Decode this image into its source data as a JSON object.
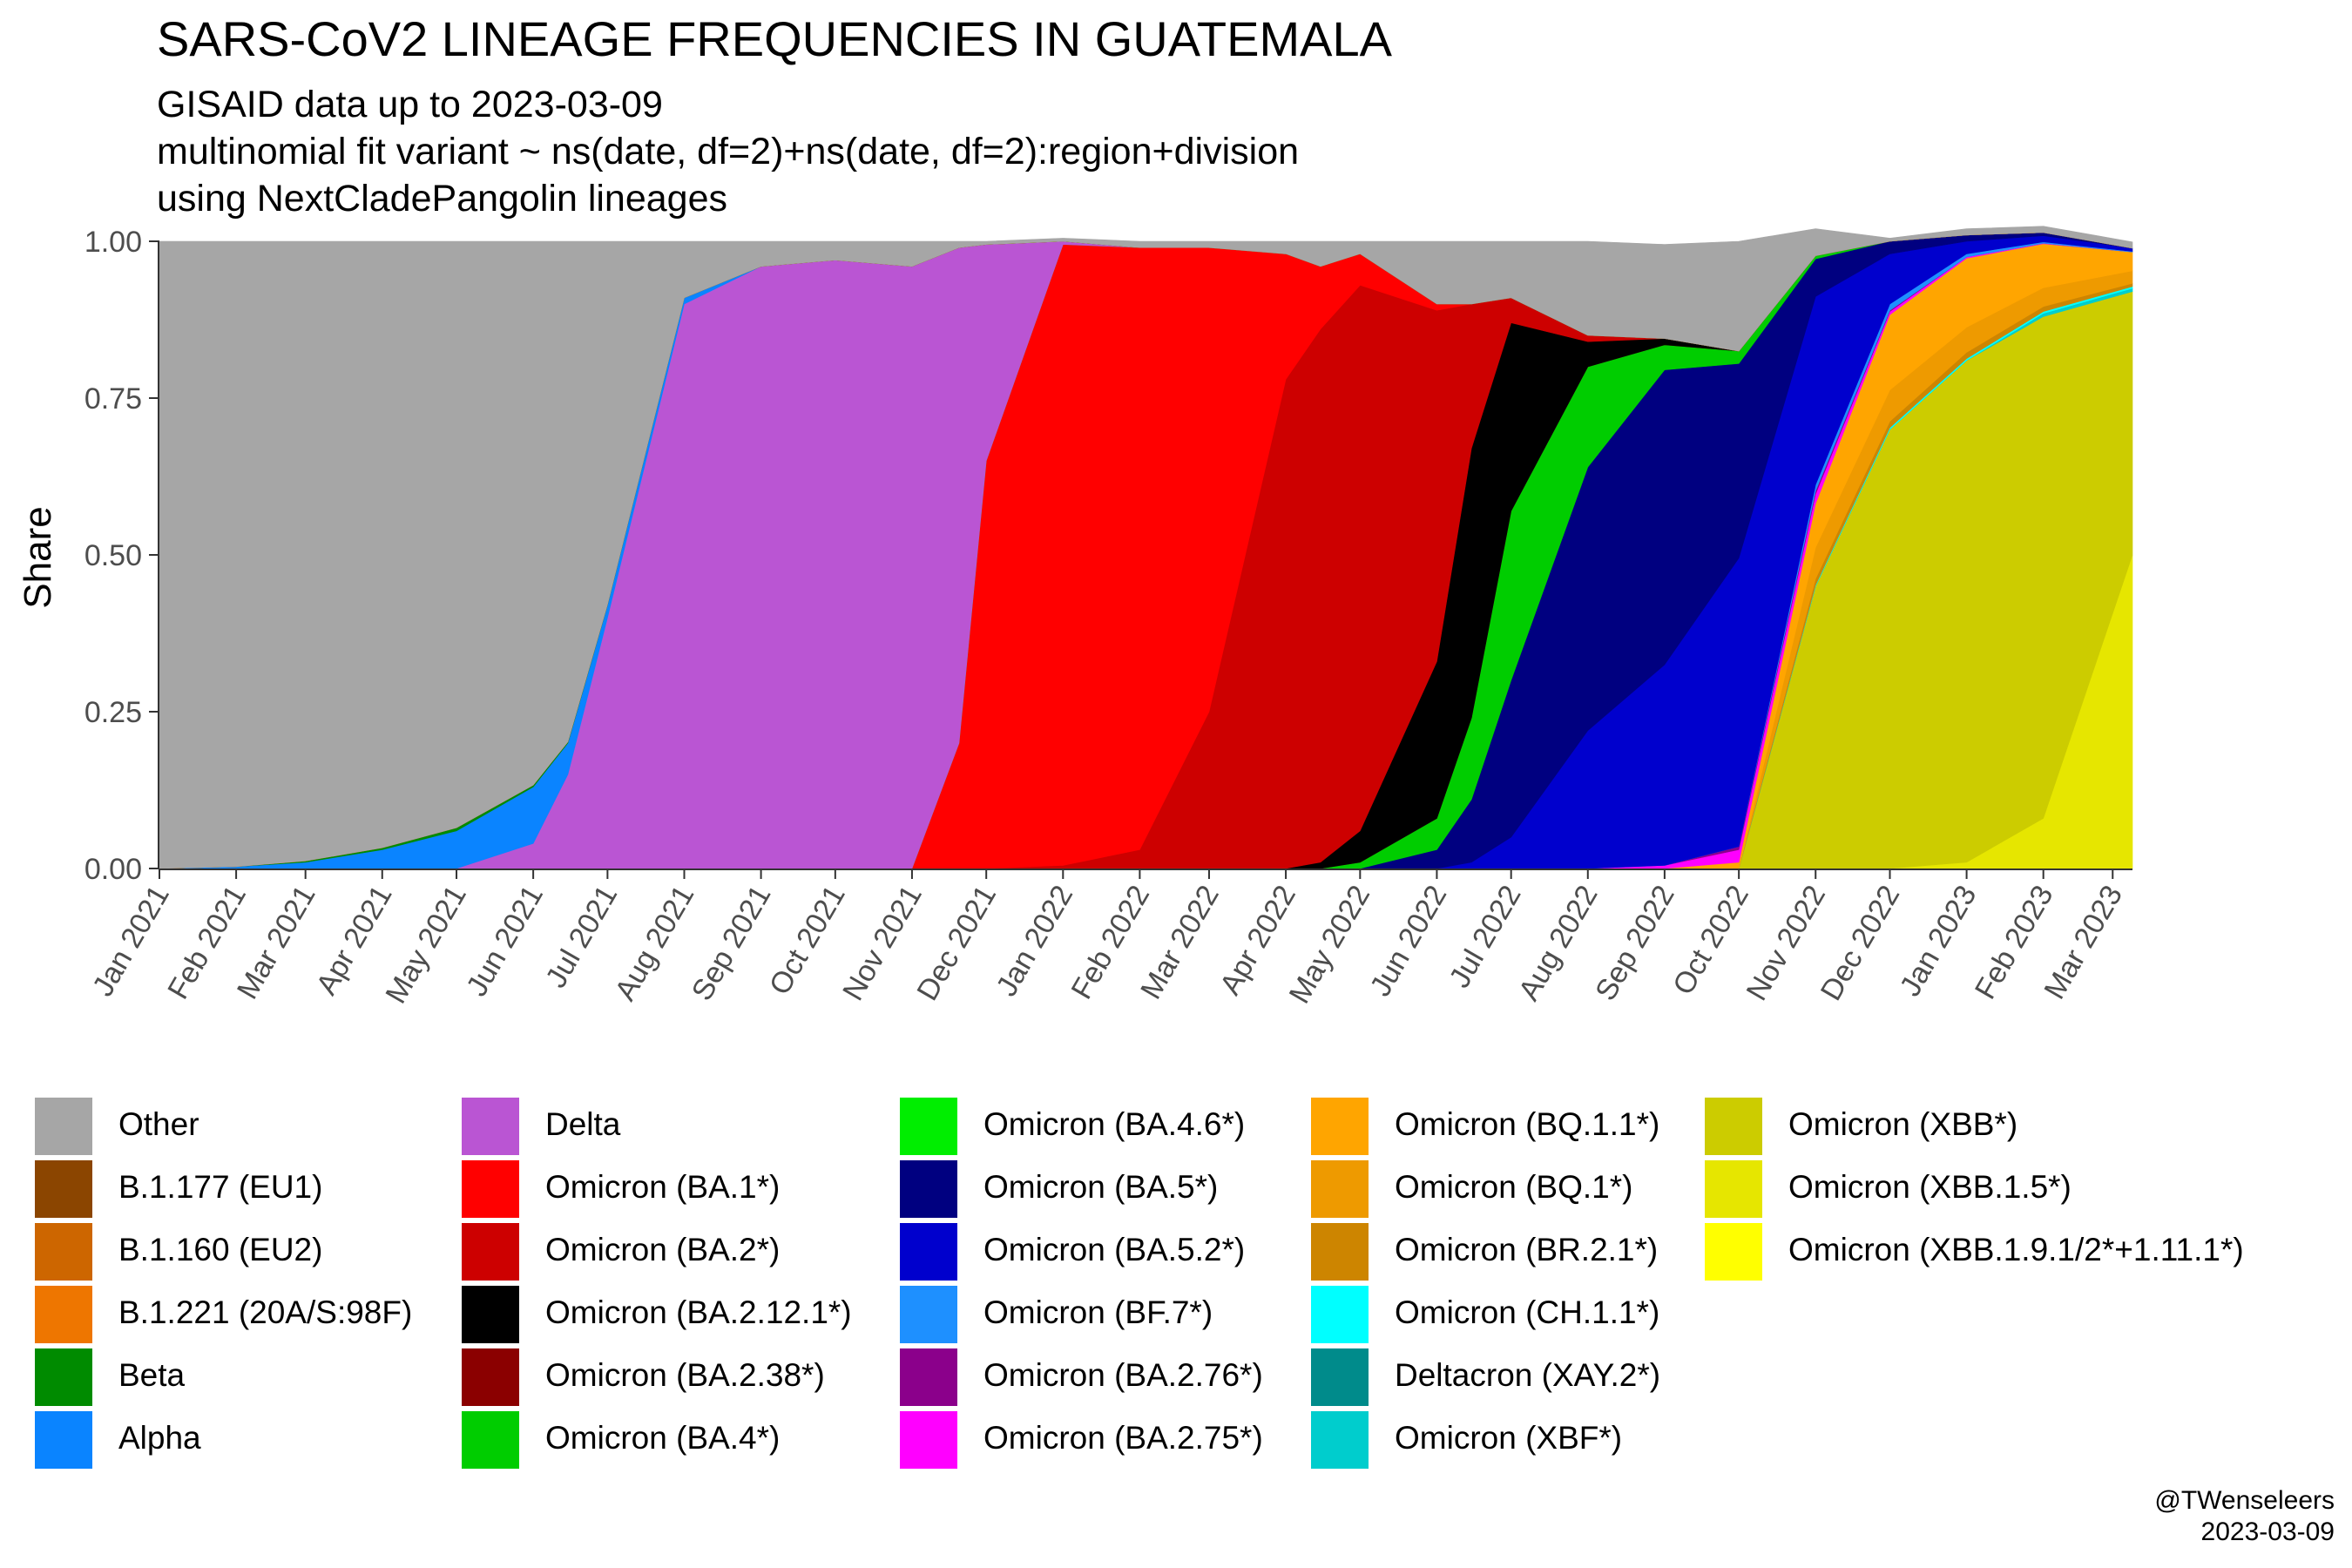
{
  "title": "SARS-CoV2 LINEAGE FREQUENCIES IN GUATEMALA",
  "subtitle_lines": [
    "GISAID data up to 2023-03-09",
    "multinomial fit variant ~ ns(date, df=2)+ns(date, df=2):region+division",
    "using NextCladePangolin lineages"
  ],
  "credit": {
    "handle": "@TWenseleers",
    "date": "2023-03-09"
  },
  "chart_data": {
    "type": "area",
    "stacked": "fill",
    "ylabel": "Share",
    "ylim": [
      0,
      1
    ],
    "xlim": [
      "2021-01-01",
      "2023-03-09"
    ],
    "y_ticks": [
      "0.00",
      "0.25",
      "0.50",
      "0.75",
      "1.00"
    ],
    "x_ticks": [
      "Jan 2021",
      "Feb 2021",
      "Mar 2021",
      "Apr 2021",
      "May 2021",
      "Jun 2021",
      "Jul 2021",
      "Aug 2021",
      "Sep 2021",
      "Oct 2021",
      "Nov 2021",
      "Dec 2021",
      "Jan 2022",
      "Feb 2022",
      "Mar 2022",
      "Apr 2022",
      "May 2022",
      "Jun 2022",
      "Jul 2022",
      "Aug 2022",
      "Sep 2022",
      "Oct 2022",
      "Nov 2022",
      "Dec 2022",
      "Jan 2023",
      "Feb 2023",
      "Mar 2023"
    ],
    "x": [
      "2021-01-01",
      "2021-02-01",
      "2021-03-01",
      "2021-04-01",
      "2021-05-01",
      "2021-06-01",
      "2021-06-15",
      "2021-07-01",
      "2021-08-01",
      "2021-09-01",
      "2021-10-01",
      "2021-11-01",
      "2021-11-20",
      "2021-12-01",
      "2022-01-01",
      "2022-02-01",
      "2022-03-01",
      "2022-04-01",
      "2022-04-15",
      "2022-05-01",
      "2022-06-01",
      "2022-06-15",
      "2022-07-01",
      "2022-08-01",
      "2022-09-01",
      "2022-10-01",
      "2022-11-01",
      "2022-12-01",
      "2023-01-01",
      "2023-02-01",
      "2023-03-09"
    ],
    "series": [
      {
        "name": "Omicron (XBB.1.9.1/2*+1.11.1*)",
        "color": "#ffff00",
        "values": [
          0,
          0,
          0,
          0,
          0,
          0,
          0,
          0,
          0,
          0,
          0,
          0,
          0,
          0,
          0,
          0,
          0,
          0,
          0,
          0,
          0,
          0,
          0,
          0,
          0,
          0,
          0,
          0,
          0,
          0,
          0
        ]
      },
      {
        "name": "Omicron (XBB.1.5*)",
        "color": "#e6e600",
        "values": [
          0,
          0,
          0,
          0,
          0,
          0,
          0,
          0,
          0,
          0,
          0,
          0,
          0,
          0,
          0,
          0,
          0,
          0,
          0,
          0,
          0,
          0,
          0,
          0,
          0,
          0,
          0,
          0,
          0.01,
          0.08,
          0.5
        ]
      },
      {
        "name": "Omicron (XBB*)",
        "color": "#cccc00",
        "values": [
          0,
          0,
          0,
          0,
          0,
          0,
          0,
          0,
          0,
          0,
          0,
          0,
          0,
          0,
          0,
          0,
          0,
          0,
          0,
          0,
          0,
          0,
          0,
          0,
          0,
          0,
          0.45,
          0.7,
          0.8,
          0.8,
          0.42
        ]
      },
      {
        "name": "Omicron (XBF*)",
        "color": "#00cdcd",
        "values": [
          0,
          0,
          0,
          0,
          0,
          0,
          0,
          0,
          0,
          0,
          0,
          0,
          0,
          0,
          0,
          0,
          0,
          0,
          0,
          0,
          0,
          0,
          0,
          0,
          0,
          0,
          0,
          0,
          0,
          0.005,
          0.005
        ]
      },
      {
        "name": "Deltacron (XAY.2*)",
        "color": "#008b8b",
        "values": [
          0,
          0,
          0,
          0,
          0,
          0,
          0,
          0,
          0,
          0,
          0,
          0,
          0,
          0,
          0,
          0,
          0,
          0,
          0,
          0,
          0,
          0,
          0,
          0,
          0,
          0,
          0,
          0,
          0,
          0,
          0
        ]
      },
      {
        "name": "Omicron (CH.1.1*)",
        "color": "#00ffff",
        "values": [
          0,
          0,
          0,
          0,
          0,
          0,
          0,
          0,
          0,
          0,
          0,
          0,
          0,
          0,
          0,
          0,
          0,
          0,
          0,
          0,
          0,
          0,
          0,
          0,
          0,
          0,
          0.002,
          0.003,
          0.003,
          0.003,
          0.003
        ]
      },
      {
        "name": "Omicron (BR.2.1*)",
        "color": "#cd8500",
        "values": [
          0,
          0,
          0,
          0,
          0,
          0,
          0,
          0,
          0,
          0,
          0,
          0,
          0,
          0,
          0,
          0,
          0,
          0,
          0,
          0,
          0,
          0,
          0,
          0,
          0,
          0,
          0.01,
          0.01,
          0.01,
          0.008,
          0.005
        ]
      },
      {
        "name": "Omicron (BQ.1*)",
        "color": "#ee9a00",
        "values": [
          0,
          0,
          0,
          0,
          0,
          0,
          0,
          0,
          0,
          0,
          0,
          0,
          0,
          0,
          0,
          0,
          0,
          0,
          0,
          0,
          0,
          0,
          0,
          0,
          0,
          0,
          0.05,
          0.05,
          0.04,
          0.03,
          0.02
        ]
      },
      {
        "name": "Omicron (BQ.1.1*)",
        "color": "#ffa500",
        "values": [
          0,
          0,
          0,
          0,
          0,
          0,
          0,
          0,
          0,
          0,
          0,
          0,
          0,
          0,
          0,
          0,
          0,
          0,
          0,
          0,
          0,
          0,
          0,
          0,
          0,
          0.01,
          0.07,
          0.12,
          0.11,
          0.07,
          0.03
        ]
      },
      {
        "name": "Omicron (BA.2.75*)",
        "color": "#ff00ff",
        "values": [
          0,
          0,
          0,
          0,
          0,
          0,
          0,
          0,
          0,
          0,
          0,
          0,
          0,
          0,
          0,
          0,
          0,
          0,
          0,
          0,
          0,
          0,
          0,
          0,
          0.005,
          0.02,
          0.015,
          0.005,
          0.002,
          0.001,
          0
        ]
      },
      {
        "name": "Omicron (BA.2.76*)",
        "color": "#8b008b",
        "values": [
          0,
          0,
          0,
          0,
          0,
          0,
          0,
          0,
          0,
          0,
          0,
          0,
          0,
          0,
          0,
          0,
          0,
          0,
          0,
          0,
          0,
          0,
          0,
          0,
          0,
          0.005,
          0.005,
          0.002,
          0,
          0,
          0
        ]
      },
      {
        "name": "Omicron (BF.7*)",
        "color": "#1e90ff",
        "values": [
          0,
          0,
          0,
          0,
          0,
          0,
          0,
          0,
          0,
          0,
          0,
          0,
          0,
          0,
          0,
          0,
          0,
          0,
          0,
          0,
          0,
          0,
          0,
          0,
          0,
          0,
          0.01,
          0.01,
          0.005,
          0.002,
          0.001
        ]
      },
      {
        "name": "Omicron (BA.5.2*)",
        "color": "#0000cd",
        "values": [
          0,
          0,
          0,
          0,
          0,
          0,
          0,
          0,
          0,
          0,
          0,
          0,
          0,
          0,
          0,
          0,
          0,
          0,
          0,
          0,
          0,
          0.01,
          0.05,
          0.22,
          0.32,
          0.46,
          0.3,
          0.08,
          0.02,
          0.01,
          0.005
        ]
      },
      {
        "name": "Omicron (BA.5*)",
        "color": "#000080",
        "values": [
          0,
          0,
          0,
          0,
          0,
          0,
          0,
          0,
          0,
          0,
          0,
          0,
          0,
          0,
          0,
          0,
          0,
          0,
          0,
          0,
          0.03,
          0.1,
          0.25,
          0.42,
          0.47,
          0.31,
          0.06,
          0.02,
          0.01,
          0.005,
          0
        ]
      },
      {
        "name": "Omicron (BA.4*)",
        "color": "#00cd00",
        "values": [
          0,
          0,
          0,
          0,
          0,
          0,
          0,
          0,
          0,
          0,
          0,
          0,
          0,
          0,
          0,
          0,
          0,
          0,
          0,
          0.01,
          0.05,
          0.13,
          0.27,
          0.16,
          0.04,
          0.02,
          0.005,
          0,
          0,
          0,
          0
        ]
      },
      {
        "name": "Omicron (BA.2.38*)",
        "color": "#8b0000",
        "values": [
          0,
          0,
          0,
          0,
          0,
          0,
          0,
          0,
          0,
          0,
          0,
          0,
          0,
          0,
          0,
          0,
          0,
          0,
          0,
          0,
          0,
          0,
          0,
          0,
          0,
          0,
          0,
          0,
          0,
          0,
          0
        ]
      },
      {
        "name": "Omicron (BA.2.12.1*)",
        "color": "#000000",
        "values": [
          0,
          0,
          0,
          0,
          0,
          0,
          0,
          0,
          0,
          0,
          0,
          0,
          0,
          0,
          0,
          0,
          0,
          0,
          0.01,
          0.05,
          0.25,
          0.43,
          0.3,
          0.04,
          0.01,
          0,
          0,
          0,
          0,
          0,
          0
        ]
      },
      {
        "name": "Omicron (BA.2*)",
        "color": "#cd0000",
        "values": [
          0,
          0,
          0,
          0,
          0,
          0,
          0,
          0,
          0,
          0,
          0,
          0,
          0,
          0,
          0.005,
          0.03,
          0.25,
          0.78,
          0.85,
          0.87,
          0.56,
          0.23,
          0.04,
          0.01,
          0,
          0,
          0,
          0,
          0,
          0,
          0
        ]
      },
      {
        "name": "Omicron (BA.1*)",
        "color": "#ff0000",
        "values": [
          0,
          0,
          0,
          0,
          0,
          0,
          0,
          0,
          0,
          0,
          0,
          0,
          0.2,
          0.65,
          0.99,
          0.96,
          0.74,
          0.2,
          0.1,
          0.05,
          0.01,
          0,
          0,
          0,
          0,
          0,
          0,
          0,
          0,
          0,
          0
        ]
      },
      {
        "name": "Omicron (BA.4.6*)",
        "color": "#00ee00",
        "values": [
          0,
          0,
          0,
          0,
          0,
          0,
          0,
          0,
          0,
          0,
          0,
          0,
          0,
          0,
          0,
          0,
          0,
          0,
          0,
          0,
          0,
          0,
          0,
          0,
          0,
          0,
          0,
          0,
          0,
          0,
          0
        ]
      },
      {
        "name": "Delta",
        "color": "#ba55d3",
        "values": [
          0,
          0,
          0,
          0,
          0,
          0.04,
          0.15,
          0.4,
          0.9,
          0.96,
          0.97,
          0.96,
          0.79,
          0.345,
          0.005,
          0,
          0,
          0,
          0,
          0,
          0,
          0,
          0,
          0,
          0,
          0,
          0,
          0,
          0,
          0,
          0
        ]
      },
      {
        "name": "Alpha",
        "color": "#0a84ff",
        "values": [
          0,
          0.003,
          0.01,
          0.03,
          0.06,
          0.09,
          0.05,
          0.02,
          0.01,
          0,
          0,
          0,
          0,
          0,
          0,
          0,
          0,
          0,
          0,
          0,
          0,
          0,
          0,
          0,
          0,
          0,
          0,
          0,
          0,
          0,
          0
        ]
      },
      {
        "name": "Beta",
        "color": "#008b00",
        "values": [
          0,
          0,
          0.002,
          0.003,
          0.005,
          0.003,
          0.002,
          0.001,
          0,
          0,
          0,
          0,
          0,
          0,
          0,
          0,
          0,
          0,
          0,
          0,
          0,
          0,
          0,
          0,
          0,
          0,
          0,
          0,
          0,
          0,
          0
        ]
      },
      {
        "name": "B.1.221 (20A/S:98F)",
        "color": "#ee7600",
        "values": [
          0,
          0,
          0,
          0,
          0,
          0,
          0,
          0,
          0,
          0,
          0,
          0,
          0,
          0,
          0,
          0,
          0,
          0,
          0,
          0,
          0,
          0,
          0,
          0,
          0,
          0,
          0,
          0,
          0,
          0,
          0
        ]
      },
      {
        "name": "B.1.160 (EU2)",
        "color": "#cd6600",
        "values": [
          0,
          0,
          0,
          0,
          0,
          0,
          0,
          0,
          0,
          0,
          0,
          0,
          0,
          0,
          0,
          0,
          0,
          0,
          0,
          0,
          0,
          0,
          0,
          0,
          0,
          0,
          0,
          0,
          0,
          0,
          0
        ]
      },
      {
        "name": "B.1.177 (EU1)",
        "color": "#8b4500",
        "values": [
          0,
          0,
          0,
          0,
          0,
          0,
          0,
          0,
          0,
          0,
          0,
          0,
          0,
          0,
          0,
          0,
          0,
          0,
          0,
          0,
          0,
          0,
          0,
          0,
          0,
          0,
          0,
          0,
          0,
          0,
          0
        ]
      },
      {
        "name": "Other",
        "color": "#a6a6a6",
        "values": [
          1,
          0.997,
          0.988,
          0.967,
          0.935,
          0.867,
          0.798,
          0.579,
          0.09,
          0.04,
          0.03,
          0.04,
          0.01,
          0.005,
          0.005,
          0.01,
          0.01,
          0.02,
          0.04,
          0.02,
          0.1,
          0.1,
          0.09,
          0.15,
          0.15,
          0.175,
          0.043,
          0.005,
          0.01,
          0.01,
          0.01
        ]
      }
    ],
    "legend": {
      "placement": "bottom",
      "columns": [
        [
          "Other",
          "B.1.177 (EU1)",
          "B.1.160 (EU2)",
          "B.1.221 (20A/S:98F)",
          "Beta",
          "Alpha"
        ],
        [
          "Delta",
          "Omicron (BA.1*)",
          "Omicron (BA.2*)",
          "Omicron (BA.2.12.1*)",
          "Omicron (BA.2.38*)",
          "Omicron (BA.4*)"
        ],
        [
          "Omicron (BA.4.6*)",
          "Omicron (BA.5*)",
          "Omicron (BA.5.2*)",
          "Omicron (BF.7*)",
          "Omicron (BA.2.76*)",
          "Omicron (BA.2.75*)"
        ],
        [
          "Omicron (BQ.1.1*)",
          "Omicron (BQ.1*)",
          "Omicron (BR.2.1*)",
          "Omicron (CH.1.1*)",
          "Deltacron (XAY.2*)",
          "Omicron (XBF*)"
        ],
        [
          "Omicron (XBB*)",
          "Omicron (XBB.1.5*)",
          "Omicron (XBB.1.9.1/2*+1.11.1*)"
        ]
      ]
    }
  }
}
